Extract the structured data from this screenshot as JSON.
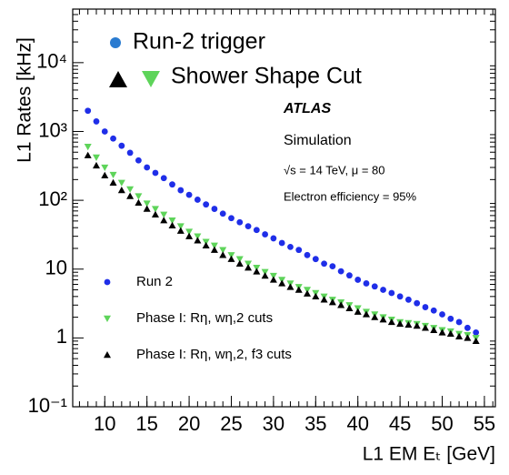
{
  "chart_data": {
    "type": "scatter",
    "y_label": "L1 Rates [kHz]",
    "x_label": "L1 EM Eₜ [GeV]",
    "log_y": true,
    "xlim": [
      6.2,
      56.3
    ],
    "ylim": [
      0.1,
      60000
    ],
    "xticks": [
      10,
      15,
      20,
      25,
      30,
      35,
      40,
      45,
      50,
      55
    ],
    "yticks": [
      {
        "value": 0.1,
        "label": "10⁻¹"
      },
      1,
      10,
      {
        "value": 100,
        "label": "10²"
      },
      {
        "value": 1000,
        "label": "10³"
      },
      {
        "value": 10000,
        "label": "10⁴"
      }
    ],
    "annotations": {
      "overlay": [
        "Run-2 trigger",
        "Shower Shape Cut"
      ],
      "experiment": "ATLAS",
      "kind": "Simulation",
      "conditions": "√s = 14 TeV, μ = 80",
      "efficiency": "Electron efficiency = 95%"
    },
    "x": [
      8,
      9,
      10,
      11,
      12,
      13,
      14,
      15,
      16,
      17,
      18,
      19,
      20,
      21,
      22,
      23,
      24,
      25,
      26,
      27,
      28,
      29,
      30,
      31,
      32,
      33,
      34,
      35,
      36,
      37,
      38,
      39,
      40,
      41,
      42,
      43,
      44,
      45,
      46,
      47,
      48,
      49,
      50,
      51,
      52,
      53,
      54
    ],
    "series": [
      {
        "name": "Run 2",
        "color": "#1f2ee8",
        "marker": "circle",
        "values": [
          2000,
          1400,
          1000,
          790,
          620,
          490,
          380,
          300,
          250,
          210,
          170,
          140,
          120,
          102,
          87,
          75,
          64,
          55,
          48,
          42,
          37,
          32,
          28,
          24,
          21,
          19,
          16,
          14,
          12,
          11,
          9.3,
          8.1,
          7,
          6.2,
          5.6,
          5,
          4.5,
          4,
          3.6,
          3.2,
          2.8,
          2.5,
          2.2,
          1.9,
          1.7,
          1.4,
          1.2
        ]
      },
      {
        "name": "Phase I: Rη, wη,2 cuts",
        "color": "#5ed45a",
        "marker": "triangle-down",
        "values": [
          600,
          420,
          300,
          235,
          180,
          145,
          115,
          90,
          75,
          62,
          51,
          42,
          35,
          30,
          25,
          22,
          19,
          16,
          14,
          12,
          10.5,
          9.1,
          8,
          7,
          6.2,
          5.5,
          5,
          4.5,
          4,
          3.6,
          3.3,
          3,
          2.7,
          2.4,
          2.2,
          2,
          1.85,
          1.7,
          1.65,
          1.6,
          1.5,
          1.4,
          1.3,
          1.25,
          1.15,
          1.1,
          1.0
        ]
      },
      {
        "name": "Phase I: Rη, wη,2, f3 cuts",
        "color": "#000000",
        "marker": "triangle-up",
        "values": [
          450,
          320,
          230,
          180,
          140,
          115,
          92,
          75,
          62,
          51,
          43,
          36,
          30,
          26,
          22,
          19,
          16,
          14,
          12,
          10.5,
          9.2,
          8,
          7,
          6.2,
          5.5,
          5,
          4.4,
          4,
          3.6,
          3.3,
          3,
          2.7,
          2.4,
          2.2,
          2,
          1.85,
          1.7,
          1.6,
          1.55,
          1.5,
          1.4,
          1.3,
          1.2,
          1.15,
          1.05,
          1.0,
          0.9
        ]
      }
    ]
  }
}
